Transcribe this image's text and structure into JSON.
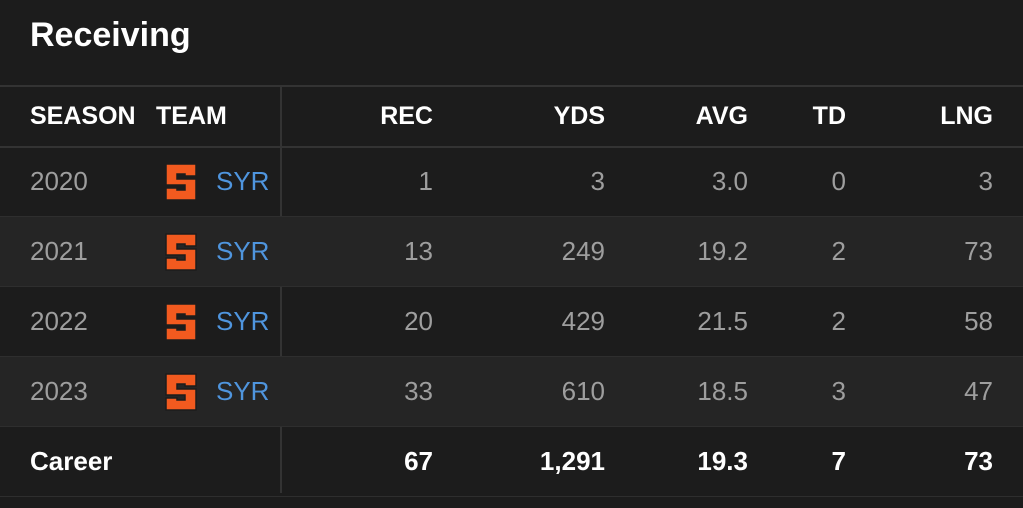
{
  "title": "Receiving",
  "table": {
    "columns": [
      "SEASON",
      "TEAM",
      "REC",
      "YDS",
      "AVG",
      "TD",
      "LNG"
    ],
    "rows": [
      [
        "2020",
        "SYR",
        "1",
        "3",
        "3.0",
        "0",
        "3"
      ],
      [
        "2021",
        "SYR",
        "13",
        "249",
        "19.2",
        "2",
        "73"
      ],
      [
        "2022",
        "SYR",
        "20",
        "429",
        "21.5",
        "2",
        "58"
      ],
      [
        "2023",
        "SYR",
        "33",
        "610",
        "18.5",
        "3",
        "47"
      ]
    ],
    "footer": [
      "Career",
      "67",
      "1,291",
      "19.3",
      "7",
      "73"
    ]
  }
}
